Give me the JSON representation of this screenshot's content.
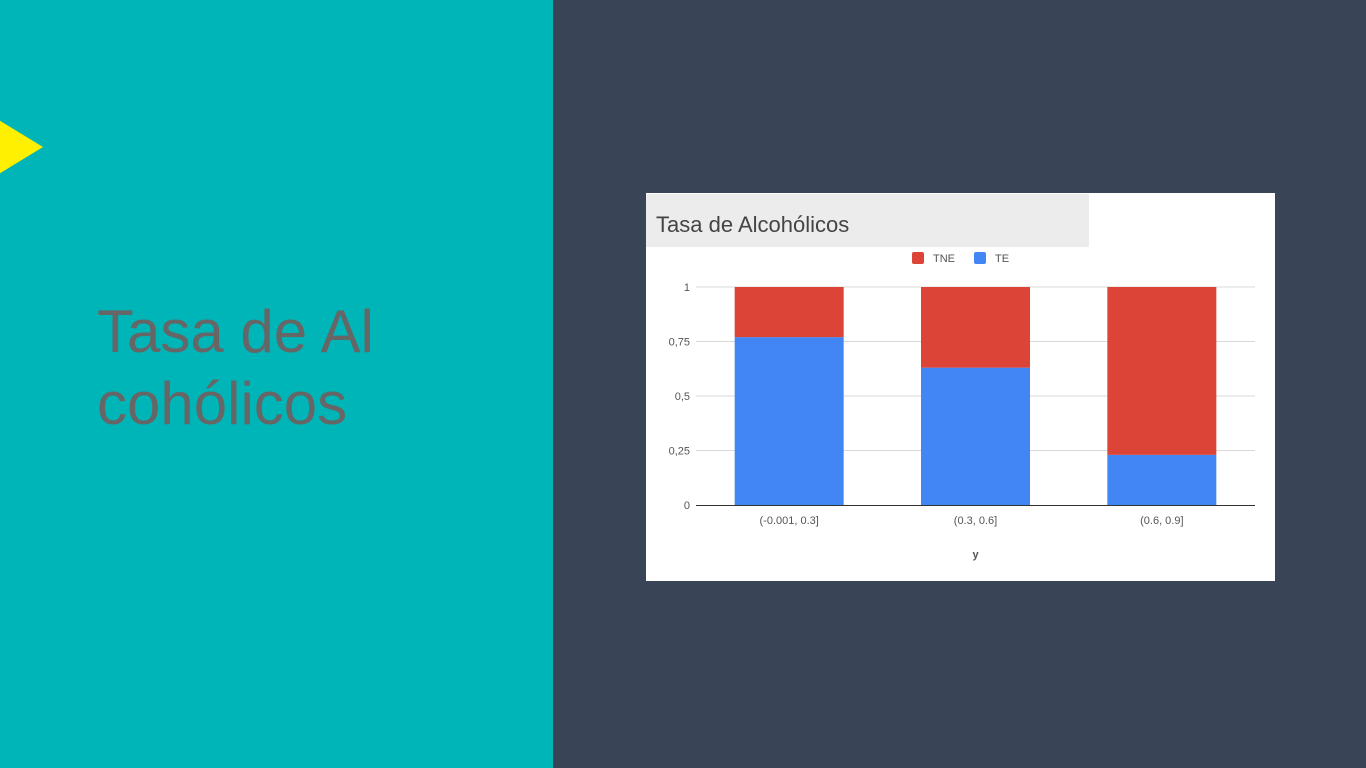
{
  "slide": {
    "title": "Tasa de Alcohólicos",
    "colors": {
      "left_bg": "#00b5b8",
      "right_bg": "#3a4457",
      "accent": "#ffef00",
      "title_text": "#666666"
    }
  },
  "chart_data": {
    "type": "bar",
    "stacked": true,
    "title": "Tasa de Alcohólicos",
    "xlabel": "y",
    "ylabel": "",
    "categories": [
      "(-0.001, 0.3]",
      "(0.3, 0.6]",
      "(0.6, 0.9]"
    ],
    "series": [
      {
        "name": "TE",
        "color": "#4285f4",
        "values": [
          0.77,
          0.63,
          0.23
        ]
      },
      {
        "name": "TNE",
        "color": "#db4437",
        "values": [
          0.23,
          0.37,
          0.77
        ]
      }
    ],
    "legend_order": [
      "TNE",
      "TE"
    ],
    "ylim": [
      0,
      1
    ],
    "yticks": [
      0,
      0.25,
      0.5,
      0.75,
      1
    ],
    "ytick_labels": [
      "0",
      "0,25",
      "0,5",
      "0,75",
      "1"
    ],
    "grid": true,
    "legend": "top-center"
  }
}
